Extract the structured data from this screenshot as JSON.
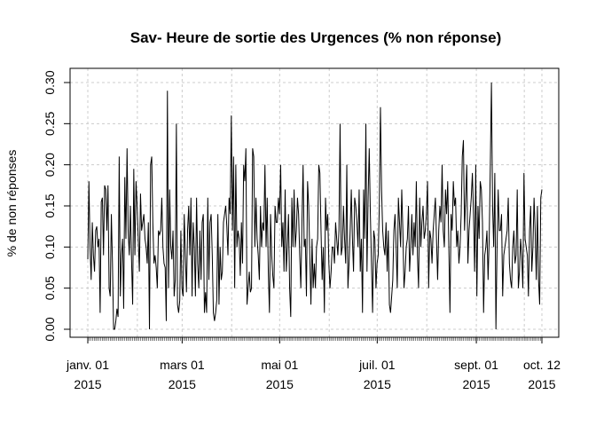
{
  "chart_data": {
    "type": "line",
    "title": "Sav- Heure de sortie des Urgences (% non réponse)",
    "ylabel": "% de non réponses",
    "xlabel": "",
    "ylim": [
      0,
      0.3
    ],
    "yticks": [
      "0.00",
      "0.05",
      "0.10",
      "0.15",
      "0.20",
      "0.25",
      "0.30"
    ],
    "xlim": [
      "2015-01-01",
      "2015-10-12"
    ],
    "xticks": [
      {
        "date": "2015-01-01",
        "line1": "janv. 01",
        "line2": "2015"
      },
      {
        "date": "2015-03-01",
        "line1": "mars 01",
        "line2": "2015"
      },
      {
        "date": "2015-05-01",
        "line1": "mai 01",
        "line2": "2015"
      },
      {
        "date": "2015-07-01",
        "line1": "juil. 01",
        "line2": "2015"
      },
      {
        "date": "2015-09-01",
        "line1": "sept. 01",
        "line2": "2015"
      },
      {
        "date": "2015-10-12",
        "line1": "oct. 12",
        "line2": "2015"
      }
    ],
    "grid": true,
    "line_color": "#000000",
    "grid_color": "#cccccc",
    "values": [
      0.085,
      0.18,
      0.1,
      0.06,
      0.13,
      0.09,
      0.07,
      0.12,
      0.125,
      0.1,
      0.11,
      0.02,
      0.155,
      0.16,
      0.09,
      0.175,
      0.17,
      0.12,
      0.175,
      0.05,
      0.04,
      0.14,
      0.08,
      0.0,
      0.0,
      0.01,
      0.025,
      0.015,
      0.21,
      0.04,
      0.09,
      0.11,
      0.025,
      0.185,
      0.11,
      0.22,
      0.12,
      0.09,
      0.15,
      0.085,
      0.03,
      0.195,
      0.09,
      0.18,
      0.15,
      0.11,
      0.07,
      0.165,
      0.12,
      0.13,
      0.14,
      0.11,
      0.1,
      0.08,
      0.13,
      0.0,
      0.2,
      0.21,
      0.13,
      0.08,
      0.09,
      0.075,
      0.05,
      0.12,
      0.115,
      0.12,
      0.16,
      0.1,
      0.08,
      0.075,
      0.01,
      0.29,
      0.05,
      0.17,
      0.1,
      0.085,
      0.12,
      0.04,
      0.06,
      0.25,
      0.03,
      0.02,
      0.035,
      0.12,
      0.05,
      0.04,
      0.14,
      0.09,
      0.045,
      0.12,
      0.15,
      0.09,
      0.16,
      0.04,
      0.13,
      0.1,
      0.04,
      0.16,
      0.08,
      0.05,
      0.12,
      0.06,
      0.13,
      0.14,
      0.02,
      0.045,
      0.02,
      0.16,
      0.06,
      0.13,
      0.14,
      0.09,
      0.02,
      0.01,
      0.02,
      0.035,
      0.14,
      0.03,
      0.1,
      0.06,
      0.07,
      0.13,
      0.14,
      0.15,
      0.125,
      0.09,
      0.16,
      0.14,
      0.26,
      0.12,
      0.21,
      0.05,
      0.2,
      0.1,
      0.12,
      0.11,
      0.065,
      0.13,
      0.08,
      0.2,
      0.18,
      0.22,
      0.03,
      0.05,
      0.07,
      0.045,
      0.05,
      0.22,
      0.21,
      0.1,
      0.16,
      0.11,
      0.09,
      0.06,
      0.15,
      0.1,
      0.13,
      0.12,
      0.2,
      0.1,
      0.16,
      0.07,
      0.02,
      0.14,
      0.09,
      0.065,
      0.05,
      0.15,
      0.13,
      0.13,
      0.16,
      0.14,
      0.2,
      0.1,
      0.13,
      0.07,
      0.17,
      0.07,
      0.1,
      0.14,
      0.05,
      0.015,
      0.16,
      0.1,
      0.17,
      0.1,
      0.12,
      0.16,
      0.14,
      0.09,
      0.05,
      0.13,
      0.2,
      0.1,
      0.11,
      0.04,
      0.18,
      0.15,
      0.09,
      0.03,
      0.11,
      0.05,
      0.08,
      0.05,
      0.1,
      0.11,
      0.2,
      0.19,
      0.12,
      0.06,
      0.1,
      0.02,
      0.16,
      0.12,
      0.14,
      0.08,
      0.05,
      0.07,
      0.1,
      0.1,
      0.08,
      0.13,
      0.11,
      0.09,
      0.12,
      0.25,
      0.09,
      0.1,
      0.15,
      0.11,
      0.08,
      0.2,
      0.05,
      0.08,
      0.12,
      0.17,
      0.11,
      0.07,
      0.16,
      0.15,
      0.13,
      0.1,
      0.17,
      0.07,
      0.11,
      0.02,
      0.17,
      0.11,
      0.25,
      0.07,
      0.16,
      0.22,
      0.14,
      0.08,
      0.02,
      0.12,
      0.11,
      0.05,
      0.08,
      0.09,
      0.15,
      0.27,
      0.17,
      0.12,
      0.1,
      0.09,
      0.13,
      0.07,
      0.12,
      0.03,
      0.02,
      0.04,
      0.06,
      0.12,
      0.14,
      0.1,
      0.05,
      0.16,
      0.13,
      0.1,
      0.17,
      0.12,
      0.05,
      0.07,
      0.1,
      0.11,
      0.15,
      0.07,
      0.1,
      0.14,
      0.09,
      0.13,
      0.1,
      0.18,
      0.09,
      0.05,
      0.16,
      0.1,
      0.13,
      0.15,
      0.11,
      0.12,
      0.14,
      0.18,
      0.05,
      0.12,
      0.11,
      0.08,
      0.12,
      0.14,
      0.16,
      0.11,
      0.06,
      0.12,
      0.15,
      0.13,
      0.2,
      0.12,
      0.1,
      0.17,
      0.14,
      0.18,
      0.1,
      0.02,
      0.14,
      0.12,
      0.18,
      0.15,
      0.16,
      0.1,
      0.12,
      0.08,
      0.1,
      0.14,
      0.21,
      0.23,
      0.12,
      0.16,
      0.2,
      0.08,
      0.12,
      0.14,
      0.16,
      0.19,
      0.14,
      0.07,
      0.2,
      0.04,
      0.15,
      0.11,
      0.18,
      0.17,
      0.13,
      0.02,
      0.09,
      0.1,
      0.12,
      0.06,
      0.11,
      0.2,
      0.3,
      0.15,
      0.1,
      0.19,
      0.0,
      0.1,
      0.17,
      0.12,
      0.12,
      0.14,
      0.04,
      0.09,
      0.1,
      0.11,
      0.12,
      0.16,
      0.08,
      0.06,
      0.05,
      0.1,
      0.12,
      0.08,
      0.09,
      0.17,
      0.05,
      0.07,
      0.11,
      0.09,
      0.05,
      0.19,
      0.11,
      0.1,
      0.09,
      0.04,
      0.12,
      0.15,
      0.07,
      0.1,
      0.16,
      0.12,
      0.06,
      0.15,
      0.06,
      0.03,
      0.16,
      0.17
    ]
  }
}
